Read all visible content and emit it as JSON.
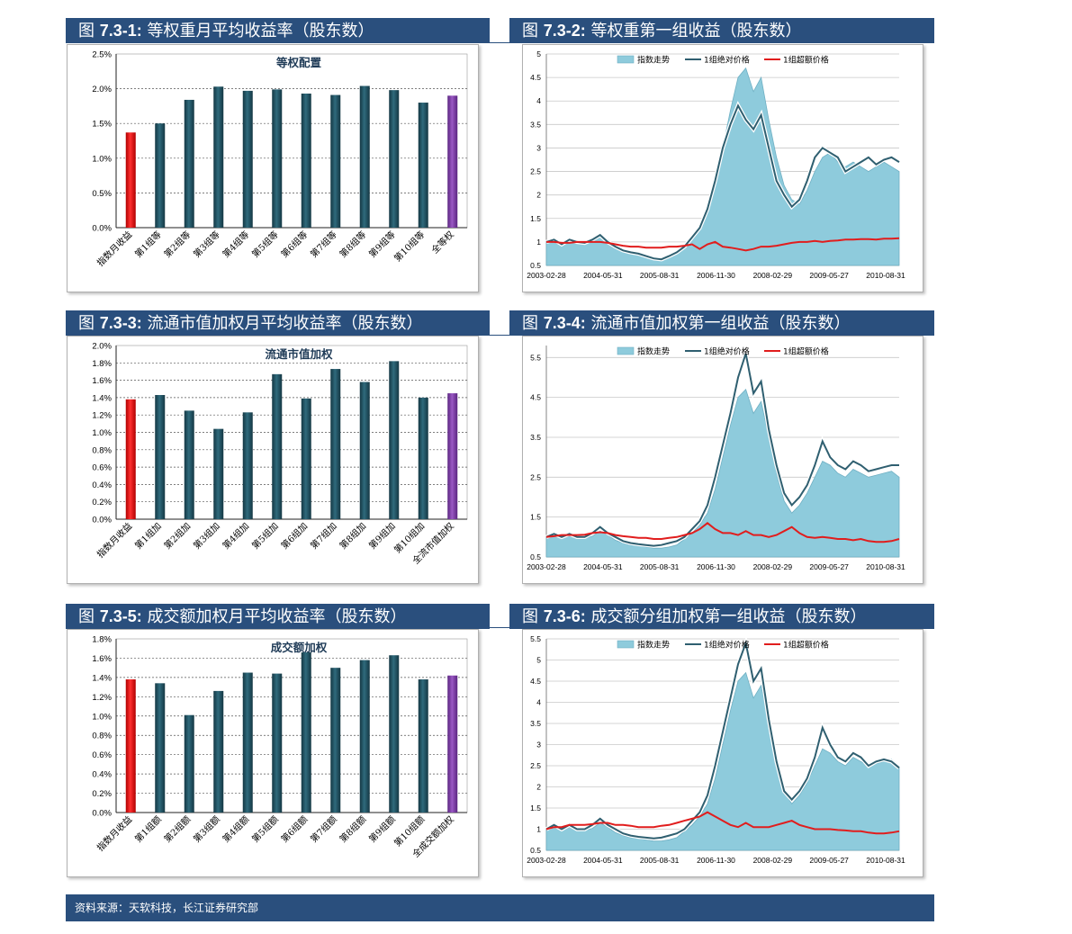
{
  "colors": {
    "header_bg": "#2a4f7d",
    "bar_dark": "#1e4a58",
    "bar_red": "#e01010",
    "bar_purple": "#7a3aa0",
    "area_fill": "#8ecbdc",
    "line_teal": "#2f5f70",
    "line_red": "#e11d1d"
  },
  "panels": [
    {
      "label": "图",
      "num": "7.3-1:",
      "title": "等权重月平均收益率（股东数）"
    },
    {
      "label": "图",
      "num": "7.3-2:",
      "title": "等权重第一组收益（股东数）"
    },
    {
      "label": "图",
      "num": "7.3-3:",
      "title": "流通市值加权月平均收益率（股东数）"
    },
    {
      "label": "图",
      "num": "7.3-4:",
      "title": "流通市值加权第一组收益（股东数）"
    },
    {
      "label": "图",
      "num": "7.3-5:",
      "title": "成交额加权月平均收益率（股东数）"
    },
    {
      "label": "图",
      "num": "7.3-6:",
      "title": "成交额分组加权第一组收益（股东数）"
    }
  ],
  "footer": {
    "source": "资料来源：天软科技，长江证券研究部"
  },
  "chart_data": [
    {
      "type": "bar",
      "title": "等权配置",
      "categories": [
        "指数月收益",
        "第1组等",
        "第2组等",
        "第3组等",
        "第4组等",
        "第5组等",
        "第6组等",
        "第7组等",
        "第8组等",
        "第9组等",
        "第10组等",
        "全等权"
      ],
      "values": [
        1.37,
        1.5,
        1.84,
        2.03,
        1.97,
        1.99,
        1.93,
        1.91,
        2.04,
        1.98,
        1.8,
        1.9
      ],
      "bar_colors": [
        "red",
        "dark",
        "dark",
        "dark",
        "dark",
        "dark",
        "dark",
        "dark",
        "dark",
        "dark",
        "dark",
        "purple"
      ],
      "yticks": [
        "0.0%",
        "0.5%",
        "1.0%",
        "1.5%",
        "2.0%",
        "2.5%"
      ],
      "ylim": [
        0,
        2.5
      ],
      "unit": "%"
    },
    {
      "type": "area",
      "legend": [
        "指数走势",
        "1组绝对价格",
        "1组超额价格"
      ],
      "xtick_labels": [
        "2003-02-28",
        "2004-05-31",
        "2005-08-31",
        "2006-11-30",
        "2008-02-29",
        "2009-05-27",
        "2010-08-31"
      ],
      "yticks": [
        "0.5",
        "1",
        "1.5",
        "2",
        "2.5",
        "3",
        "3.5",
        "4",
        "4.5",
        "5"
      ],
      "ylim": [
        0.5,
        5
      ],
      "series": [
        {
          "name": "指数走势",
          "values": [
            1.0,
            1.02,
            0.98,
            1.05,
            1.0,
            0.97,
            1.02,
            1.15,
            1.05,
            0.92,
            0.85,
            0.8,
            0.78,
            0.72,
            0.68,
            0.66,
            0.7,
            0.76,
            0.9,
            1.1,
            1.3,
            1.6,
            2.2,
            3.0,
            3.8,
            4.5,
            4.7,
            4.2,
            4.5,
            3.6,
            2.8,
            2.2,
            1.9,
            1.8,
            2.1,
            2.5,
            2.8,
            2.9,
            2.7,
            2.6,
            2.7,
            2.6,
            2.5,
            2.6,
            2.7,
            2.6,
            2.5
          ]
        },
        {
          "name": "1组绝对价格",
          "values": [
            1.0,
            1.05,
            0.95,
            1.05,
            1.0,
            0.98,
            1.05,
            1.15,
            1.0,
            0.9,
            0.82,
            0.78,
            0.75,
            0.7,
            0.65,
            0.63,
            0.7,
            0.78,
            0.9,
            1.1,
            1.3,
            1.7,
            2.3,
            3.0,
            3.5,
            3.9,
            3.6,
            3.4,
            3.7,
            3.0,
            2.3,
            2.0,
            1.75,
            1.9,
            2.3,
            2.8,
            3.0,
            2.9,
            2.8,
            2.5,
            2.6,
            2.7,
            2.8,
            2.65,
            2.75,
            2.8,
            2.7
          ]
        },
        {
          "name": "1组超额价格",
          "values": [
            1.0,
            1.0,
            0.98,
            0.98,
            1.0,
            1.0,
            1.0,
            1.0,
            0.98,
            0.95,
            0.92,
            0.9,
            0.9,
            0.88,
            0.88,
            0.88,
            0.9,
            0.9,
            0.92,
            0.95,
            0.85,
            0.95,
            1.0,
            0.9,
            0.88,
            0.85,
            0.82,
            0.85,
            0.9,
            0.9,
            0.92,
            0.95,
            0.98,
            1.0,
            1.0,
            1.02,
            1.0,
            1.02,
            1.03,
            1.05,
            1.05,
            1.06,
            1.06,
            1.05,
            1.07,
            1.07,
            1.08
          ]
        }
      ]
    },
    {
      "type": "bar",
      "title": "流通市值加权",
      "categories": [
        "指数月收益",
        "第1组加",
        "第2组加",
        "第3组加",
        "第4组加",
        "第5组加",
        "第6组加",
        "第7组加",
        "第8组加",
        "第9组加",
        "第10组加",
        "全流市值加权"
      ],
      "values": [
        1.38,
        1.43,
        1.25,
        1.04,
        1.23,
        1.67,
        1.39,
        1.73,
        1.58,
        1.82,
        1.4,
        1.45
      ],
      "bar_colors": [
        "red",
        "dark",
        "dark",
        "dark",
        "dark",
        "dark",
        "dark",
        "dark",
        "dark",
        "dark",
        "dark",
        "purple"
      ],
      "yticks": [
        "0.0%",
        "0.2%",
        "0.4%",
        "0.6%",
        "0.8%",
        "1.0%",
        "1.2%",
        "1.4%",
        "1.6%",
        "1.8%",
        "2.0%"
      ],
      "ylim": [
        0,
        2.0
      ],
      "unit": "%"
    },
    {
      "type": "area",
      "legend": [
        "指数走势",
        "1组绝对价格",
        "1组超额价格"
      ],
      "xtick_labels": [
        "2003-02-28",
        "2004-05-31",
        "2005-08-31",
        "2006-11-30",
        "2008-02-29",
        "2009-05-27",
        "2010-08-31"
      ],
      "yticks": [
        "0.5",
        "1.5",
        "2.5",
        "3.5",
        "4.5",
        "5.5"
      ],
      "ylim": [
        0.5,
        5.8
      ],
      "series": [
        {
          "name": "指数走势",
          "values": [
            1.0,
            1.05,
            0.98,
            1.05,
            1.0,
            0.97,
            1.02,
            1.15,
            1.05,
            0.92,
            0.85,
            0.8,
            0.78,
            0.75,
            0.72,
            0.72,
            0.75,
            0.8,
            0.95,
            1.1,
            1.3,
            1.6,
            2.2,
            3.0,
            3.8,
            4.5,
            4.7,
            4.1,
            4.4,
            3.5,
            2.6,
            1.9,
            1.6,
            1.8,
            2.1,
            2.5,
            2.9,
            2.8,
            2.6,
            2.5,
            2.7,
            2.6,
            2.5,
            2.55,
            2.6,
            2.65,
            2.5
          ]
        },
        {
          "name": "1组绝对价格",
          "values": [
            1.0,
            1.08,
            1.0,
            1.08,
            1.0,
            1.0,
            1.1,
            1.25,
            1.1,
            1.0,
            0.9,
            0.85,
            0.82,
            0.8,
            0.78,
            0.8,
            0.85,
            0.9,
            1.0,
            1.2,
            1.4,
            1.8,
            2.5,
            3.3,
            4.1,
            5.0,
            5.6,
            4.6,
            4.9,
            3.7,
            2.8,
            2.1,
            1.8,
            2.0,
            2.3,
            2.8,
            3.4,
            3.0,
            2.8,
            2.7,
            2.9,
            2.8,
            2.65,
            2.7,
            2.75,
            2.8,
            2.8
          ]
        },
        {
          "name": "1组超额价格",
          "values": [
            1.0,
            1.02,
            1.05,
            1.05,
            1.05,
            1.06,
            1.1,
            1.12,
            1.1,
            1.05,
            1.02,
            1.0,
            0.98,
            0.98,
            0.95,
            0.95,
            0.98,
            1.0,
            1.05,
            1.1,
            1.2,
            1.35,
            1.2,
            1.1,
            1.1,
            1.05,
            1.15,
            1.05,
            1.05,
            1.0,
            1.05,
            1.15,
            1.25,
            1.1,
            1.0,
            0.98,
            1.0,
            0.98,
            0.95,
            0.95,
            0.92,
            0.95,
            0.9,
            0.88,
            0.88,
            0.9,
            0.95
          ]
        }
      ]
    },
    {
      "type": "bar",
      "title": "成交额加权",
      "categories": [
        "指数月收益",
        "第1组额",
        "第2组额",
        "第3组额",
        "第4组额",
        "第5组额",
        "第6组额",
        "第7组额",
        "第8组额",
        "第9组额",
        "第10组额",
        "全成交额加权"
      ],
      "values": [
        1.38,
        1.34,
        1.01,
        1.26,
        1.45,
        1.44,
        1.66,
        1.5,
        1.58,
        1.63,
        1.38,
        1.42
      ],
      "bar_colors": [
        "red",
        "dark",
        "dark",
        "dark",
        "dark",
        "dark",
        "dark",
        "dark",
        "dark",
        "dark",
        "dark",
        "purple"
      ],
      "yticks": [
        "0.0%",
        "0.2%",
        "0.4%",
        "0.6%",
        "0.8%",
        "1.0%",
        "1.2%",
        "1.4%",
        "1.6%",
        "1.8%"
      ],
      "ylim": [
        0,
        1.8
      ],
      "unit": "%"
    },
    {
      "type": "area",
      "legend": [
        "指数走势",
        "1组绝对价格",
        "1组超额价格"
      ],
      "xtick_labels": [
        "2003-02-28",
        "2004-05-31",
        "2005-08-31",
        "2006-11-30",
        "2008-02-29",
        "2009-05-27",
        "2010-08-31"
      ],
      "yticks": [
        "0.5",
        "1",
        "1.5",
        "2",
        "2.5",
        "3",
        "3.5",
        "4",
        "4.5",
        "5",
        "5.5"
      ],
      "ylim": [
        0.5,
        5.5
      ],
      "series": [
        {
          "name": "指数走势",
          "values": [
            1.0,
            1.05,
            0.98,
            1.05,
            1.0,
            0.97,
            1.02,
            1.15,
            1.05,
            0.92,
            0.85,
            0.8,
            0.78,
            0.75,
            0.72,
            0.72,
            0.75,
            0.8,
            0.95,
            1.1,
            1.3,
            1.6,
            2.2,
            3.0,
            3.8,
            4.5,
            4.7,
            4.1,
            4.4,
            3.5,
            2.6,
            1.9,
            1.6,
            1.8,
            2.1,
            2.5,
            2.9,
            2.8,
            2.6,
            2.5,
            2.7,
            2.6,
            2.5,
            2.55,
            2.6,
            2.65,
            2.5
          ]
        },
        {
          "name": "1组绝对价格",
          "values": [
            1.0,
            1.1,
            1.0,
            1.1,
            1.0,
            1.0,
            1.1,
            1.25,
            1.1,
            1.0,
            0.9,
            0.85,
            0.82,
            0.8,
            0.78,
            0.8,
            0.85,
            0.9,
            1.0,
            1.2,
            1.4,
            1.8,
            2.5,
            3.3,
            4.1,
            4.9,
            5.4,
            4.5,
            4.8,
            3.6,
            2.6,
            1.9,
            1.7,
            1.9,
            2.2,
            2.7,
            3.4,
            3.0,
            2.7,
            2.6,
            2.8,
            2.7,
            2.5,
            2.6,
            2.65,
            2.6,
            2.45
          ]
        },
        {
          "name": "1组超额价格",
          "values": [
            1.0,
            1.05,
            1.05,
            1.1,
            1.1,
            1.1,
            1.12,
            1.15,
            1.15,
            1.1,
            1.1,
            1.08,
            1.05,
            1.05,
            1.05,
            1.08,
            1.1,
            1.15,
            1.2,
            1.25,
            1.3,
            1.4,
            1.3,
            1.2,
            1.1,
            1.05,
            1.15,
            1.05,
            1.05,
            1.05,
            1.1,
            1.15,
            1.2,
            1.1,
            1.05,
            1.0,
            1.0,
            1.0,
            0.98,
            0.97,
            0.95,
            0.95,
            0.92,
            0.9,
            0.9,
            0.92,
            0.95
          ]
        }
      ]
    }
  ]
}
